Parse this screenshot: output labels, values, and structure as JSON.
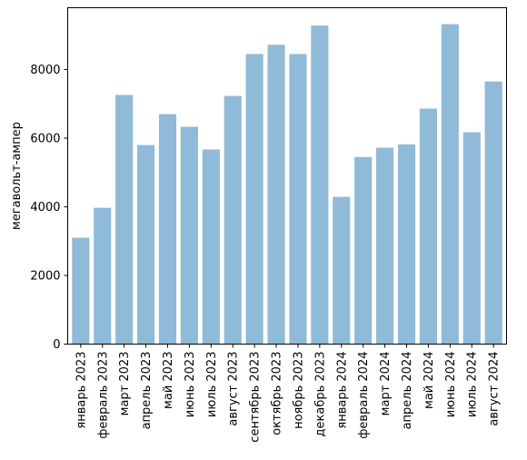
{
  "chart_data": {
    "type": "bar",
    "categories": [
      "январь 2023",
      "февраль 2023",
      "март 2023",
      "апрель 2023",
      "май 2023",
      "июнь 2023",
      "июль 2023",
      "август 2023",
      "сентябрь 2023",
      "октябрь 2023",
      "ноябрь 2023",
      "декабрь 2023",
      "январь 2024",
      "февраль 2024",
      "март 2024",
      "апрель 2024",
      "май 2024",
      "июнь 2024",
      "июль 2024",
      "август 2024"
    ],
    "values": [
      3100,
      3970,
      7260,
      5800,
      6700,
      6330,
      5670,
      7230,
      8450,
      8720,
      8450,
      9280,
      4290,
      5450,
      5720,
      5820,
      6860,
      9320,
      6170,
      7650
    ],
    "title": "",
    "xlabel": "",
    "ylabel": "мегавольт-ампер",
    "ylim": [
      0,
      9800
    ],
    "yticks": [
      0,
      2000,
      4000,
      6000,
      8000
    ],
    "grid": false,
    "bar_color": "#8fbad8"
  }
}
